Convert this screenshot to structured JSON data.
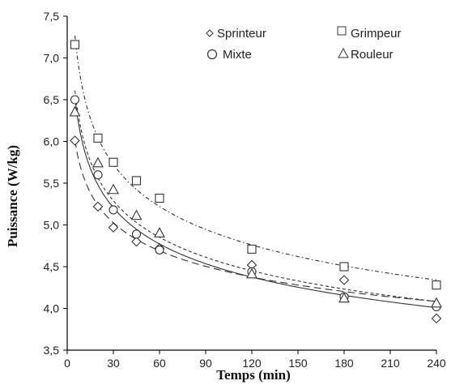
{
  "chart_data": {
    "type": "scatter",
    "xlabel": "Temps (min)",
    "ylabel": "Puissance (W/kg)",
    "xlim": [
      0,
      240
    ],
    "ylim": [
      3.5,
      7.5
    ],
    "xticks": [
      0,
      30,
      60,
      90,
      120,
      150,
      180,
      210,
      240
    ],
    "yticks": [
      "3,5",
      "4,0",
      "4,5",
      "5,0",
      "5,5",
      "6,0",
      "6,5",
      "7,0",
      "7,5"
    ],
    "grid": false,
    "legend_position": "top-right",
    "series": [
      {
        "name": "Sprinteur",
        "marker": "diamond",
        "line_style": "long-dash",
        "x": [
          5,
          20,
          30,
          45,
          60,
          120,
          180,
          240
        ],
        "y": [
          6.01,
          5.22,
          4.97,
          4.8,
          4.72,
          4.52,
          4.34,
          3.88
        ]
      },
      {
        "name": "Grimpeur",
        "marker": "square",
        "line_style": "dash-dot",
        "x": [
          5,
          20,
          30,
          45,
          60,
          120,
          180,
          240
        ],
        "y": [
          7.16,
          6.04,
          5.75,
          5.53,
          5.32,
          4.71,
          4.5,
          4.28
        ]
      },
      {
        "name": "Mixte",
        "marker": "circle",
        "line_style": "solid",
        "x": [
          5,
          20,
          30,
          45,
          60,
          120,
          180,
          240
        ],
        "y": [
          6.5,
          5.6,
          5.18,
          4.89,
          4.7,
          4.44,
          4.14,
          4.02
        ]
      },
      {
        "name": "Rouleur",
        "marker": "triangle",
        "line_style": "short-dash",
        "x": [
          5,
          20,
          30,
          45,
          60,
          120,
          180,
          240
        ],
        "y": [
          6.35,
          5.74,
          5.42,
          5.11,
          4.9,
          4.41,
          4.12,
          4.06
        ]
      }
    ]
  }
}
